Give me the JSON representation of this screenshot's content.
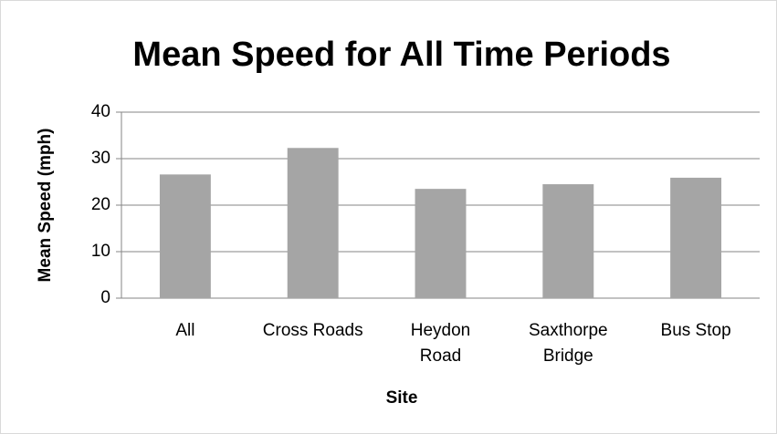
{
  "chart_data": {
    "type": "bar",
    "title": "Mean Speed for All Time Periods",
    "x_label": "Site",
    "y_label": "Mean Speed (mph)",
    "categories": [
      "All",
      "Cross Roads",
      "Heydon Road",
      "Saxthorpe Bridge",
      "Bus Stop"
    ],
    "values": [
      26.6,
      32.3,
      23.5,
      24.5,
      25.9
    ],
    "color": "#a5a5a5",
    "ylim": [
      0,
      40
    ],
    "yticks": [
      0,
      10,
      20,
      30,
      40
    ],
    "grid": true
  }
}
